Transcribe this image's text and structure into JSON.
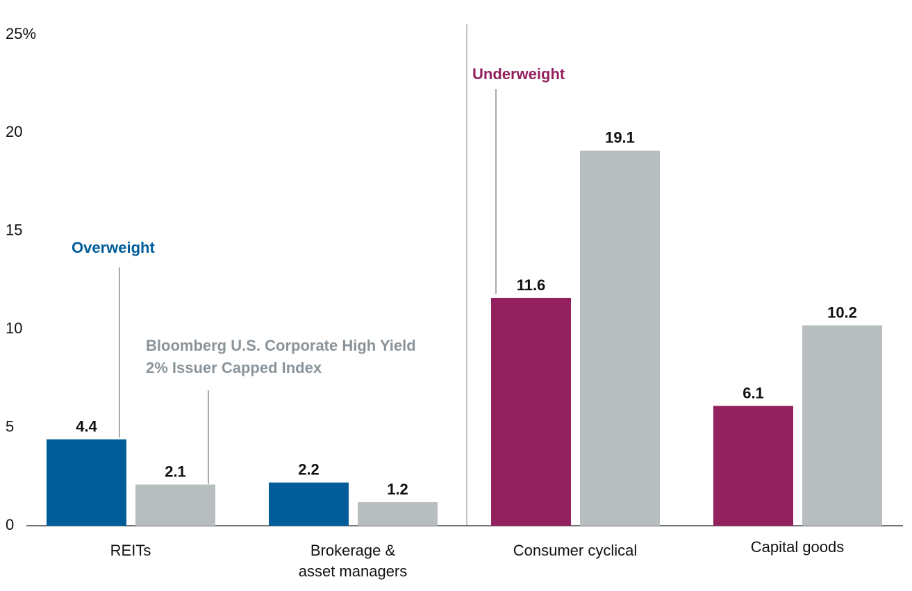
{
  "chart_data": {
    "type": "bar",
    "categories": [
      "REITs",
      "Brokerage &\nasset managers",
      "Consumer cyclical",
      "Capital goods"
    ],
    "series": [
      {
        "colors": [
          "#005d9a",
          "#005d9a",
          "#93215e",
          "#93215e"
        ],
        "values": [
          4.4,
          2.2,
          11.6,
          6.1
        ]
      },
      {
        "name": "Bloomberg U.S. Corporate High Yield\n2% Issuer Capped Index",
        "color": "#b8bdc0",
        "label_color": "#8a9399",
        "values": [
          2.1,
          1.2,
          19.1,
          10.2
        ]
      }
    ],
    "annotations": [
      {
        "text": "Overweight",
        "color": "#005d9a"
      },
      {
        "text": "Underweight",
        "color": "#93215e"
      }
    ],
    "ylim": [
      0,
      25
    ],
    "yticks": [
      0,
      5,
      10,
      15,
      20,
      {
        "value": 25,
        "label": "25%"
      }
    ],
    "grid": false
  }
}
